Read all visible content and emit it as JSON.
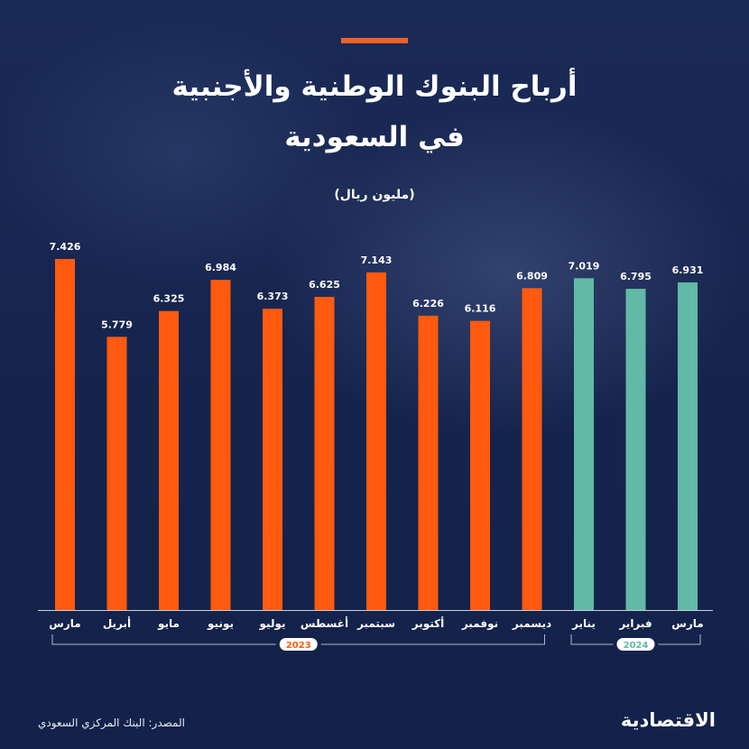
{
  "title_line1": "أرباح البنوك الوطنية والأجنبية",
  "title_line2": "في السعودية",
  "unit": "(مليون ريال)",
  "source": "المصدر: البنك المركزي السعودي",
  "logo": "الاقتصادية",
  "colors": {
    "accent": "#f0602a",
    "year2023": "#ff5a0f",
    "year2024": "#62b9a5",
    "background": "#16264f"
  },
  "chart_data": {
    "type": "bar",
    "title": "أرباح البنوك الوطنية والأجنبية في السعودية",
    "ylabel": "(مليون ريال)",
    "ylim": [
      0,
      7.426
    ],
    "categories": [
      "مارس",
      "أبريل",
      "مايو",
      "يونيو",
      "يوليو",
      "أغسطس",
      "سبتمبر",
      "أكتوبر",
      "نوفمبر",
      "ديسمبر",
      "يناير",
      "فبراير",
      "مارس"
    ],
    "values": [
      7.426,
      5.779,
      6.325,
      6.984,
      6.373,
      6.625,
      7.143,
      6.226,
      6.116,
      6.809,
      7.019,
      6.795,
      6.931
    ],
    "value_labels": [
      "7.426",
      "5.779",
      "6.325",
      "6.984",
      "6.373",
      "6.625",
      "7.143",
      "6.226",
      "6.116",
      "6.809",
      "7.019",
      "6.795",
      "6.931"
    ],
    "groups": [
      {
        "label": "2023",
        "start": 0,
        "end": 9,
        "color": "#ff5a0f"
      },
      {
        "label": "2024",
        "start": 10,
        "end": 12,
        "color": "#62b9a5"
      }
    ]
  }
}
